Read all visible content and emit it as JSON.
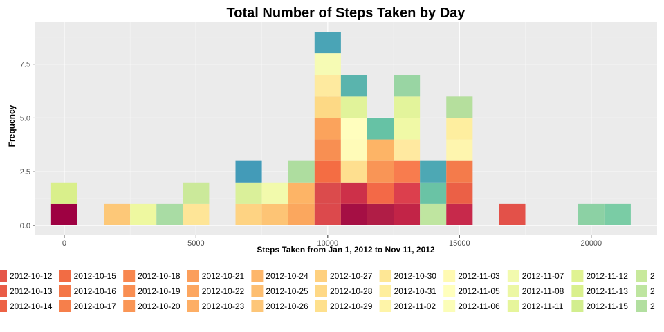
{
  "chart_data": {
    "type": "bar",
    "subtype": "stacked-histogram",
    "title": "Total Number of Steps Taken by Day",
    "xlabel": "Steps Taken from Jan 1, 2012 to Nov 11, 2012",
    "ylabel": "Frequency",
    "xlim": [
      -1100,
      22500
    ],
    "ylim": [
      -0.45,
      9.45
    ],
    "bin_width": 1000,
    "x_ticks": [
      0,
      5000,
      10000,
      15000,
      20000
    ],
    "x_tick_labels": [
      "0",
      "5000",
      "10000",
      "15000",
      "20000"
    ],
    "y_ticks": [
      0,
      2.5,
      5,
      7.5
    ],
    "y_tick_labels": [
      "0.0",
      "2.5",
      "5.0",
      "7.5"
    ],
    "grid": true,
    "legend_position": "bottom",
    "bins": [
      {
        "center": 0,
        "colors": [
          "#9E0142",
          "#D9EF8B"
        ]
      },
      {
        "center": 2000,
        "colors": [
          "#FDC878"
        ]
      },
      {
        "center": 3000,
        "colors": [
          "#EEF8A0"
        ]
      },
      {
        "center": 4000,
        "colors": [
          "#A9DCA4"
        ]
      },
      {
        "center": 5000,
        "colors": [
          "#FEE597",
          "#CBE99A"
        ]
      },
      {
        "center": 7000,
        "colors": [
          "#FED383",
          "#DAF09A",
          "#439BB8"
        ]
      },
      {
        "center": 8000,
        "colors": [
          "#FDC475",
          "#F2FAAC"
        ]
      },
      {
        "center": 9000,
        "colors": [
          "#FBA75E",
          "#FDB466",
          "#AEDD9F"
        ]
      },
      {
        "center": 10000,
        "colors": [
          "#DC494C",
          "#DB4B4C",
          "#F46D43",
          "#F88F52",
          "#FBA35C",
          "#FDD985",
          "#FEEA9F",
          "#F6FBB4",
          "#4AA4B6"
        ]
      },
      {
        "center": 11000,
        "colors": [
          "#A50F44",
          "#CD3049",
          "#FEDF8F",
          "#FFFBB8",
          "#FFFEBE",
          "#E1F39A",
          "#5AB4AD"
        ]
      },
      {
        "center": 12000,
        "colors": [
          "#B01D46",
          "#F36947",
          "#F99556",
          "#FDB466",
          "#66C2A5"
        ]
      },
      {
        "center": 13000,
        "colors": [
          "#C22447",
          "#DC3F4D",
          "#F87C4E",
          "#FFE9A0",
          "#F0F9A6",
          "#E3F49B",
          "#99D5A3"
        ]
      },
      {
        "center": 14000,
        "colors": [
          "#BFE5A0",
          "#6AC3A5",
          "#4DA8B4"
        ]
      },
      {
        "center": 15000,
        "colors": [
          "#C7294B",
          "#EB6046",
          "#F47B4B",
          "#FEF5AE",
          "#FEEE9F",
          "#B5DF9D"
        ]
      },
      {
        "center": 17000,
        "colors": [
          "#E35149"
        ]
      },
      {
        "center": 20000,
        "colors": [
          "#8CD1A4"
        ]
      },
      {
        "center": 21000,
        "colors": [
          "#7ACCA5"
        ]
      }
    ],
    "legend": [
      {
        "label": "2012-10-12",
        "color": "#E55649"
      },
      {
        "label": "2012-10-13",
        "color": "#E95C47"
      },
      {
        "label": "2012-10-14",
        "color": "#ED6245"
      },
      {
        "label": "2012-10-15",
        "color": "#F26C44"
      },
      {
        "label": "2012-10-16",
        "color": "#F47748"
      },
      {
        "label": "2012-10-17",
        "color": "#F67F4B"
      },
      {
        "label": "2012-10-18",
        "color": "#F8874F"
      },
      {
        "label": "2012-10-19",
        "color": "#F98E52"
      },
      {
        "label": "2012-10-20",
        "color": "#FA9656"
      },
      {
        "label": "2012-10-21",
        "color": "#FB9E5B"
      },
      {
        "label": "2012-10-22",
        "color": "#FCA660"
      },
      {
        "label": "2012-10-23",
        "color": "#FDAE65"
      },
      {
        "label": "2012-10-24",
        "color": "#FDB66A"
      },
      {
        "label": "2012-10-25",
        "color": "#FDBE71"
      },
      {
        "label": "2012-10-26",
        "color": "#FDC678"
      },
      {
        "label": "2012-10-27",
        "color": "#FED07F"
      },
      {
        "label": "2012-10-28",
        "color": "#FED886"
      },
      {
        "label": "2012-10-29",
        "color": "#FEE08D"
      },
      {
        "label": "2012-10-30",
        "color": "#FEE795"
      },
      {
        "label": "2012-10-31",
        "color": "#FEEE9E"
      },
      {
        "label": "2012-11-02",
        "color": "#FEF4A8"
      },
      {
        "label": "2012-11-03",
        "color": "#FFFAB2"
      },
      {
        "label": "2012-11-05",
        "color": "#FFFFBD"
      },
      {
        "label": "2012-11-06",
        "color": "#FBFDB8"
      },
      {
        "label": "2012-11-07",
        "color": "#F2FAAE"
      },
      {
        "label": "2012-11-08",
        "color": "#ECF7A4"
      },
      {
        "label": "2012-11-11",
        "color": "#E6F59B"
      },
      {
        "label": "2012-11-12",
        "color": "#E0F392"
      },
      {
        "label": "2012-11-13",
        "color": "#D9F08D"
      },
      {
        "label": "2012-11-15",
        "color": "#D2EE8E"
      },
      {
        "label": "",
        "color": "#C8E99C"
      },
      {
        "label": "",
        "color": "#BEE5A0"
      },
      {
        "label": "",
        "color": "#B2DFA0"
      }
    ],
    "legend_partial_label": "2"
  }
}
